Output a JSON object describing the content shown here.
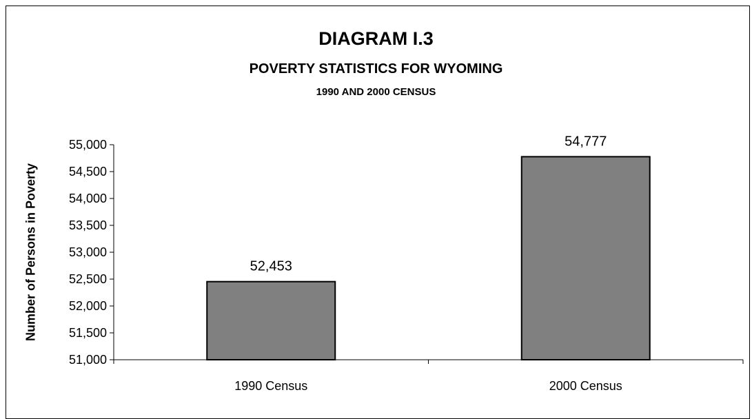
{
  "chart_data": {
    "type": "bar",
    "title": "DIAGRAM I.3",
    "subtitle": "POVERTY STATISTICS FOR WYOMING",
    "subtitle2": "1990 AND 2000 CENSUS",
    "ylabel": "Number of Persons in Poverty",
    "xlabel": "",
    "categories": [
      "1990 Census",
      "2000 Census"
    ],
    "values": [
      52453,
      54777
    ],
    "data_labels": [
      "52,453",
      "54,777"
    ],
    "ylim": [
      51000,
      55000
    ],
    "yticks": [
      51000,
      51500,
      52000,
      52500,
      53000,
      53500,
      54000,
      54500,
      55000
    ],
    "ytick_labels": [
      "51,000",
      "51,500",
      "52,000",
      "52,500",
      "53,000",
      "53,500",
      "54,000",
      "54,500",
      "55,000"
    ],
    "grid": false,
    "legend": "none",
    "bar_color": "#808080",
    "bar_edge_color": "#000000"
  }
}
